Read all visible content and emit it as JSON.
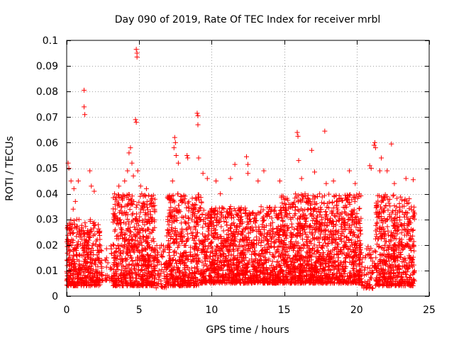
{
  "chart_data": {
    "type": "scatter",
    "title": "Day 090 of 2019, Rate Of TEC Index for receiver mrbl",
    "xlabel": "GPS time / hours",
    "ylabel": "ROTI / TECUs",
    "xlim": [
      0,
      25
    ],
    "ylim": [
      0,
      0.1
    ],
    "xticks": [
      "0",
      "5",
      "10",
      "15",
      "20",
      "25"
    ],
    "yticks": [
      "0",
      "0.01",
      "0.02",
      "0.03",
      "0.04",
      "0.05",
      "0.06",
      "0.07",
      "0.08",
      "0.09",
      "0.1"
    ],
    "grid": true,
    "marker": "+",
    "color": "#ff0000",
    "series": [
      {
        "name": "ROTI",
        "points": [
          [
            0.1,
            0.052
          ],
          [
            0.15,
            0.05
          ],
          [
            0.3,
            0.045
          ],
          [
            0.5,
            0.042
          ],
          [
            0.6,
            0.037
          ],
          [
            0.45,
            0.034
          ],
          [
            0.7,
            0.03
          ],
          [
            0.8,
            0.045
          ],
          [
            1.2,
            0.0805
          ],
          [
            1.2,
            0.074
          ],
          [
            1.25,
            0.071
          ],
          [
            1.6,
            0.049
          ],
          [
            1.7,
            0.043
          ],
          [
            1.9,
            0.041
          ],
          [
            3.3,
            0.04
          ],
          [
            3.6,
            0.043
          ],
          [
            3.9,
            0.039
          ],
          [
            4.0,
            0.045
          ],
          [
            4.2,
            0.049
          ],
          [
            4.3,
            0.056
          ],
          [
            4.4,
            0.058
          ],
          [
            4.5,
            0.052
          ],
          [
            4.6,
            0.047
          ],
          [
            4.75,
            0.069
          ],
          [
            4.8,
            0.068
          ],
          [
            4.8,
            0.0965
          ],
          [
            4.85,
            0.095
          ],
          [
            4.85,
            0.0935
          ],
          [
            4.9,
            0.049
          ],
          [
            5.1,
            0.043
          ],
          [
            5.5,
            0.042
          ],
          [
            7.3,
            0.045
          ],
          [
            7.4,
            0.058
          ],
          [
            7.45,
            0.062
          ],
          [
            7.5,
            0.06
          ],
          [
            7.55,
            0.055
          ],
          [
            7.7,
            0.052
          ],
          [
            8.3,
            0.055
          ],
          [
            8.35,
            0.054
          ],
          [
            9.0,
            0.0715
          ],
          [
            9.05,
            0.0705
          ],
          [
            9.05,
            0.067
          ],
          [
            9.1,
            0.054
          ],
          [
            9.4,
            0.048
          ],
          [
            9.7,
            0.046
          ],
          [
            10.3,
            0.045
          ],
          [
            10.6,
            0.04
          ],
          [
            11.3,
            0.046
          ],
          [
            11.6,
            0.0515
          ],
          [
            12.4,
            0.0545
          ],
          [
            12.5,
            0.0515
          ],
          [
            12.5,
            0.048
          ],
          [
            13.2,
            0.045
          ],
          [
            13.6,
            0.049
          ],
          [
            14.7,
            0.045
          ],
          [
            15.9,
            0.064
          ],
          [
            15.95,
            0.0625
          ],
          [
            16.0,
            0.053
          ],
          [
            16.2,
            0.046
          ],
          [
            16.9,
            0.057
          ],
          [
            17.1,
            0.0485
          ],
          [
            17.8,
            0.0645
          ],
          [
            17.9,
            0.044
          ],
          [
            18.4,
            0.045
          ],
          [
            19.5,
            0.049
          ],
          [
            19.9,
            0.044
          ],
          [
            20.9,
            0.051
          ],
          [
            21.0,
            0.05
          ],
          [
            21.2,
            0.059
          ],
          [
            21.25,
            0.06
          ],
          [
            21.3,
            0.058
          ],
          [
            21.6,
            0.049
          ],
          [
            21.7,
            0.054
          ],
          [
            22.1,
            0.049
          ],
          [
            22.4,
            0.0595
          ],
          [
            22.6,
            0.044
          ],
          [
            23.4,
            0.046
          ],
          [
            23.9,
            0.0455
          ]
        ]
      }
    ],
    "dense_bands": [
      {
        "x0": 0.0,
        "x1": 2.3,
        "low": 0.004,
        "high": 0.03,
        "density": 1.0
      },
      {
        "x0": 2.3,
        "x1": 3.2,
        "low": 0.006,
        "high": 0.02,
        "density": 0.25
      },
      {
        "x0": 3.2,
        "x1": 6.1,
        "low": 0.004,
        "high": 0.04,
        "density": 1.2
      },
      {
        "x0": 6.1,
        "x1": 6.9,
        "low": 0.003,
        "high": 0.02,
        "density": 0.4
      },
      {
        "x0": 6.9,
        "x1": 9.3,
        "low": 0.004,
        "high": 0.04,
        "density": 1.1
      },
      {
        "x0": 9.3,
        "x1": 14.8,
        "low": 0.005,
        "high": 0.035,
        "density": 1.1
      },
      {
        "x0": 14.8,
        "x1": 20.3,
        "low": 0.005,
        "high": 0.04,
        "density": 1.2
      },
      {
        "x0": 20.3,
        "x1": 21.3,
        "low": 0.003,
        "high": 0.02,
        "density": 0.35
      },
      {
        "x0": 21.3,
        "x1": 24.0,
        "low": 0.004,
        "high": 0.04,
        "density": 1.1
      }
    ]
  }
}
